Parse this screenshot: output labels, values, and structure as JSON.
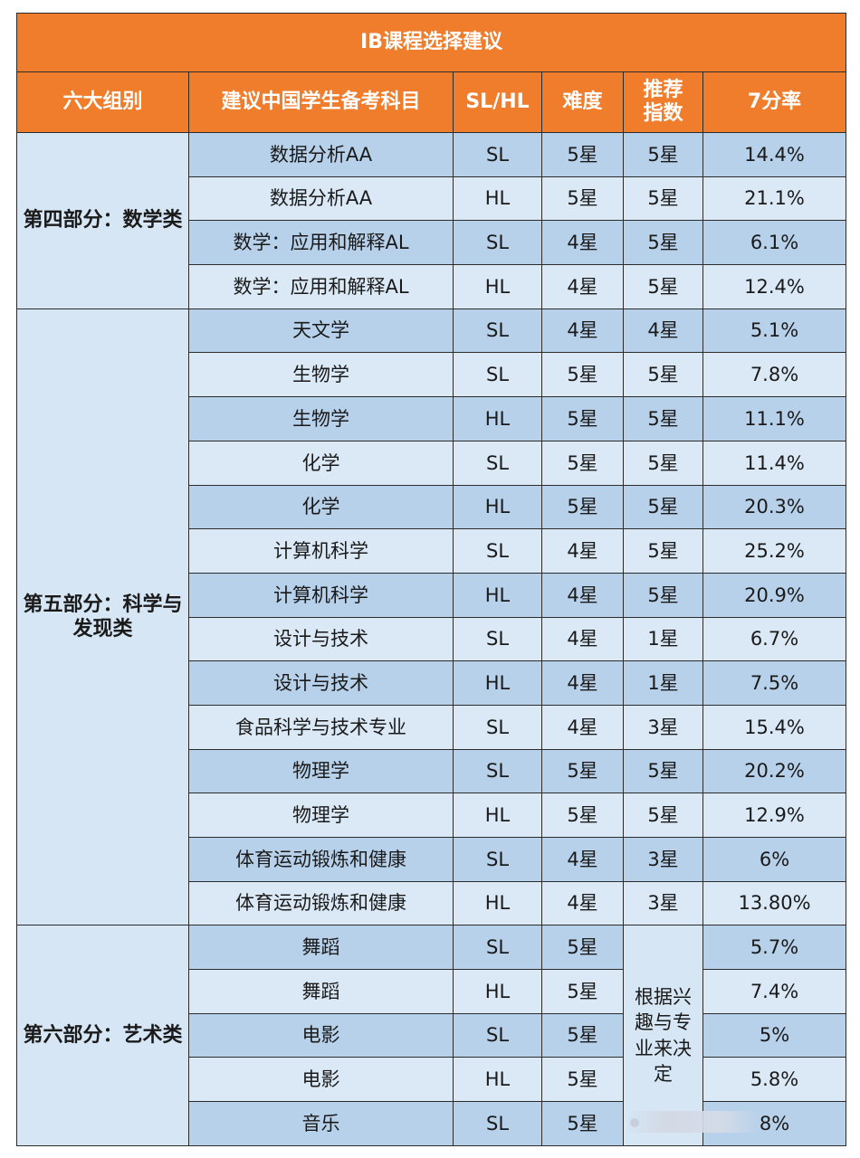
{
  "title": "IB课程选择建议",
  "headers": [
    "六大组别",
    "建议中国学生备考科目",
    "SL/HL",
    "难度",
    "推荐指数",
    "7分率"
  ],
  "groups": [
    {
      "name": "第四部分：数学类",
      "rows": [
        {
          "subject": "数据分析AA",
          "level": "SL",
          "difficulty": "5星",
          "recommend": "5星",
          "rate": "14.4%"
        },
        {
          "subject": "数据分析AA",
          "level": "HL",
          "difficulty": "5星",
          "recommend": "5星",
          "rate": "21.1%"
        },
        {
          "subject": "数学：应用和解释AL",
          "level": "SL",
          "difficulty": "4星",
          "recommend": "5星",
          "rate": "6.1%"
        },
        {
          "subject": "数学：应用和解释AL",
          "level": "HL",
          "difficulty": "4星",
          "recommend": "5星",
          "rate": "12.4%"
        }
      ]
    },
    {
      "name": "第五部分：科学与发现类",
      "rows": [
        {
          "subject": "天文学",
          "level": "SL",
          "difficulty": "4星",
          "recommend": "4星",
          "rate": "5.1%"
        },
        {
          "subject": "生物学",
          "level": "SL",
          "difficulty": "5星",
          "recommend": "5星",
          "rate": "7.8%"
        },
        {
          "subject": "生物学",
          "level": "HL",
          "difficulty": "5星",
          "recommend": "5星",
          "rate": "11.1%"
        },
        {
          "subject": "化学",
          "level": "SL",
          "difficulty": "5星",
          "recommend": "5星",
          "rate": "11.4%"
        },
        {
          "subject": "化学",
          "level": "HL",
          "difficulty": "5星",
          "recommend": "5星",
          "rate": "20.3%"
        },
        {
          "subject": "计算机科学",
          "level": "SL",
          "difficulty": "4星",
          "recommend": "5星",
          "rate": "25.2%"
        },
        {
          "subject": "计算机科学",
          "level": "HL",
          "difficulty": "4星",
          "recommend": "5星",
          "rate": "20.9%"
        },
        {
          "subject": "设计与技术",
          "level": "SL",
          "difficulty": "4星",
          "recommend": "1星",
          "rate": "6.7%"
        },
        {
          "subject": "设计与技术",
          "level": "HL",
          "difficulty": "4星",
          "recommend": "1星",
          "rate": "7.5%"
        },
        {
          "subject": "食品科学与技术专业",
          "level": "SL",
          "difficulty": "4星",
          "recommend": "3星",
          "rate": "15.4%"
        },
        {
          "subject": "物理学",
          "level": "SL",
          "difficulty": "5星",
          "recommend": "5星",
          "rate": "20.2%"
        },
        {
          "subject": "物理学",
          "level": "HL",
          "difficulty": "5星",
          "recommend": "5星",
          "rate": "12.9%"
        },
        {
          "subject": "体育运动锻炼和健康",
          "level": "SL",
          "difficulty": "4星",
          "recommend": "3星",
          "rate": "6%"
        },
        {
          "subject": "体育运动锻炼和健康",
          "level": "HL",
          "difficulty": "4星",
          "recommend": "3星",
          "rate": "13.80%"
        }
      ]
    },
    {
      "name": "第六部分：艺术类",
      "recommend_merged": "根据兴趣与专业来决定",
      "rows": [
        {
          "subject": "舞蹈",
          "level": "SL",
          "difficulty": "5星",
          "rate": "5.7%"
        },
        {
          "subject": "舞蹈",
          "level": "HL",
          "difficulty": "5星",
          "rate": "7.4%"
        },
        {
          "subject": "电影",
          "level": "SL",
          "difficulty": "5星",
          "rate": "5%"
        },
        {
          "subject": "电影",
          "level": "HL",
          "difficulty": "5星",
          "rate": "5.8%"
        },
        {
          "subject": "音乐",
          "level": "SL",
          "difficulty": "5星",
          "rate": "8%"
        }
      ]
    }
  ]
}
